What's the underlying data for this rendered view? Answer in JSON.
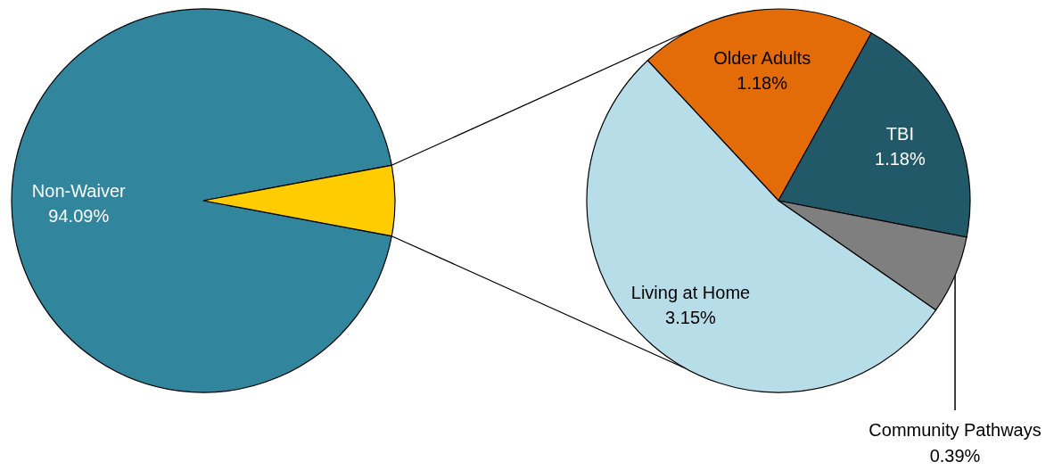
{
  "chart_data": [
    {
      "type": "pie",
      "categories": [
        "Non-Waiver",
        null
      ],
      "values": [
        94.09,
        5.91
      ],
      "colors": [
        "#31859c",
        "#ffcc00"
      ],
      "value_labels": [
        "94.09%",
        null
      ]
    },
    {
      "type": "pie",
      "categories": [
        "Older Adults",
        "TBI",
        "Community Pathways",
        "Living at Home"
      ],
      "values": [
        1.18,
        1.18,
        0.39,
        3.15
      ],
      "colors": [
        "#e36c09",
        "#215968",
        "#7f7f7f",
        "#b7dde8"
      ],
      "value_labels": [
        "1.18%",
        "1.18%",
        "0.39%",
        "3.15%"
      ]
    }
  ]
}
